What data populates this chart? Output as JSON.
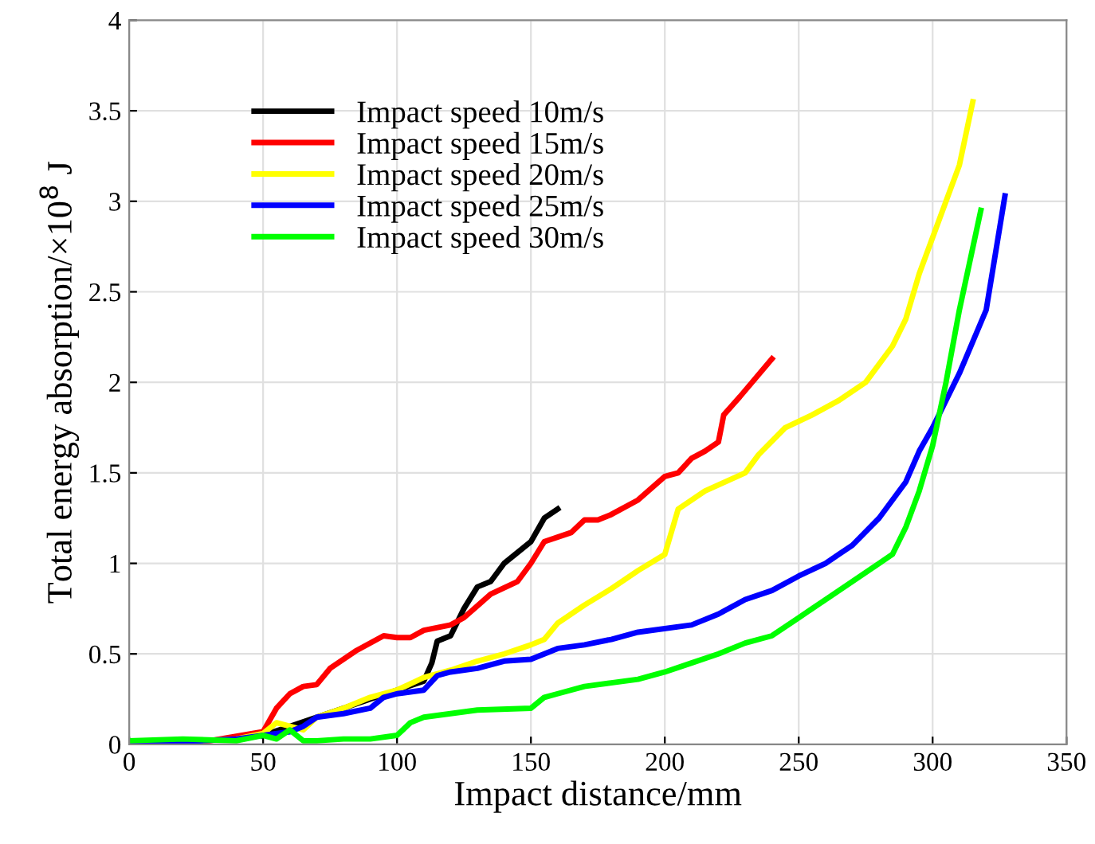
{
  "chart_data": {
    "type": "line",
    "xlabel": "Impact distance/mm",
    "ylabel": "Total energy absorption/×10$^{8}$ J",
    "xlim": [
      0,
      350
    ],
    "ylim": [
      0,
      4
    ],
    "xticks": [
      0,
      50,
      100,
      150,
      200,
      250,
      300,
      350
    ],
    "yticks": [
      0,
      0.5,
      1,
      1.5,
      2,
      2.5,
      3,
      3.5,
      4
    ],
    "grid": true,
    "legend": "top left",
    "marker": "none",
    "line_style": "solid",
    "series": [
      {
        "name": "Impact speed 10m/s",
        "color": "#000000",
        "x": [
          50,
          60,
          70,
          80,
          90,
          100,
          110,
          113,
          115,
          120,
          125,
          130,
          135,
          140,
          150,
          155,
          160
        ],
        "values": [
          0.05,
          0.1,
          0.15,
          0.2,
          0.25,
          0.3,
          0.35,
          0.45,
          0.57,
          0.6,
          0.75,
          0.87,
          0.9,
          1.0,
          1.12,
          1.25,
          1.3
        ]
      },
      {
        "name": "Impact speed 15m/s",
        "color": "#ff0000",
        "x": [
          0,
          30,
          50,
          55,
          60,
          65,
          70,
          75,
          85,
          95,
          100,
          105,
          110,
          120,
          125,
          135,
          145,
          150,
          155,
          165,
          170,
          175,
          180,
          190,
          200,
          205,
          210,
          215,
          220,
          222,
          228,
          240
        ],
        "values": [
          0,
          0.02,
          0.07,
          0.2,
          0.28,
          0.32,
          0.33,
          0.42,
          0.52,
          0.6,
          0.59,
          0.59,
          0.63,
          0.66,
          0.7,
          0.83,
          0.9,
          1.0,
          1.12,
          1.17,
          1.24,
          1.24,
          1.27,
          1.35,
          1.48,
          1.5,
          1.58,
          1.62,
          1.67,
          1.82,
          1.92,
          2.13
        ]
      },
      {
        "name": "Impact speed 20m/s",
        "color": "#ffff00",
        "x": [
          0,
          40,
          50,
          55,
          60,
          65,
          70,
          80,
          90,
          100,
          110,
          120,
          130,
          140,
          150,
          155,
          160,
          170,
          180,
          190,
          200,
          205,
          215,
          230,
          235,
          245,
          255,
          265,
          275,
          285,
          290,
          295,
          300,
          305,
          310,
          315
        ],
        "values": [
          0,
          0.03,
          0.06,
          0.12,
          0.1,
          0.08,
          0.15,
          0.2,
          0.26,
          0.3,
          0.37,
          0.41,
          0.46,
          0.5,
          0.55,
          0.58,
          0.67,
          0.77,
          0.86,
          0.96,
          1.05,
          1.3,
          1.4,
          1.5,
          1.6,
          1.75,
          1.82,
          1.9,
          2.0,
          2.2,
          2.35,
          2.6,
          2.8,
          3.0,
          3.2,
          3.55
        ]
      },
      {
        "name": "Impact speed 25m/s",
        "color": "#0000ff",
        "x": [
          0,
          40,
          60,
          65,
          70,
          80,
          90,
          95,
          100,
          110,
          115,
          120,
          130,
          140,
          150,
          160,
          170,
          180,
          190,
          210,
          220,
          230,
          240,
          250,
          260,
          265,
          270,
          280,
          290,
          295,
          300,
          310,
          320,
          327
        ],
        "values": [
          0,
          0.03,
          0.07,
          0.1,
          0.15,
          0.17,
          0.2,
          0.26,
          0.28,
          0.3,
          0.38,
          0.4,
          0.42,
          0.46,
          0.47,
          0.53,
          0.55,
          0.58,
          0.62,
          0.66,
          0.72,
          0.8,
          0.85,
          0.93,
          1.0,
          1.05,
          1.1,
          1.25,
          1.45,
          1.62,
          1.75,
          2.05,
          2.4,
          3.03
        ]
      },
      {
        "name": "Impact speed 30m/s",
        "color": "#00ff00",
        "x": [
          0,
          20,
          40,
          50,
          55,
          60,
          65,
          70,
          80,
          90,
          100,
          105,
          110,
          120,
          130,
          150,
          155,
          160,
          170,
          180,
          190,
          200,
          210,
          220,
          230,
          240,
          250,
          260,
          270,
          280,
          285,
          290,
          295,
          300,
          305,
          310,
          318
        ],
        "values": [
          0.02,
          0.03,
          0.02,
          0.05,
          0.03,
          0.08,
          0.02,
          0.02,
          0.03,
          0.03,
          0.05,
          0.12,
          0.15,
          0.17,
          0.19,
          0.2,
          0.26,
          0.28,
          0.32,
          0.34,
          0.36,
          0.4,
          0.45,
          0.5,
          0.56,
          0.6,
          0.7,
          0.8,
          0.9,
          1.0,
          1.05,
          1.2,
          1.4,
          1.65,
          2.0,
          2.4,
          2.95
        ]
      }
    ]
  }
}
